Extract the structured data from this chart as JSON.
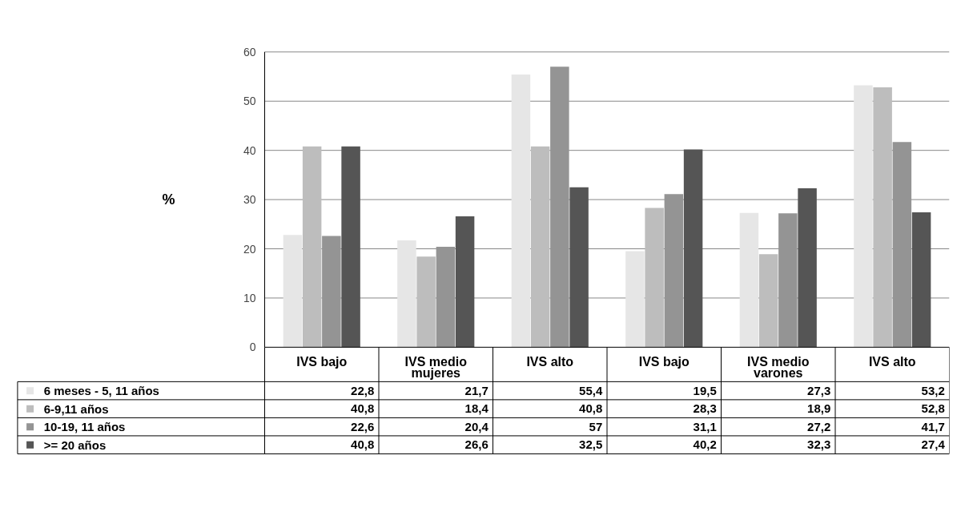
{
  "chart_data": {
    "type": "bar",
    "categories": [
      "IVS bajo",
      "IVS medio",
      "IVS alto",
      "IVS bajo",
      "IVS medio",
      "IVS alto"
    ],
    "annotations": [
      "%",
      "mujeres",
      "varones"
    ],
    "series": [
      {
        "name": "6 meses - 5, 11 años",
        "color": "#e6e6e6",
        "values": [
          22.8,
          21.7,
          55.4,
          19.5,
          27.3,
          53.2
        ],
        "value_labels": [
          "22,8",
          "21,7",
          "55,4",
          "19,5",
          "27,3",
          "53,2"
        ]
      },
      {
        "name": "6-9,11 años",
        "color": "#bdbdbd",
        "values": [
          40.8,
          18.4,
          40.8,
          28.3,
          18.9,
          52.8
        ],
        "value_labels": [
          "40,8",
          "18,4",
          "40,8",
          "28,3",
          "18,9",
          "52,8"
        ]
      },
      {
        "name": "10-19, 11 años",
        "color": "#949494",
        "values": [
          22.6,
          20.4,
          57,
          31.1,
          27.2,
          41.7
        ],
        "value_labels": [
          "22,6",
          "20,4",
          "57",
          "31,1",
          "27,2",
          "41,7"
        ]
      },
      {
        "name": ">= 20 años",
        "color": "#555555",
        "values": [
          40.8,
          26.6,
          32.5,
          40.2,
          32.3,
          27.4
        ],
        "value_labels": [
          "40,8",
          "26,6",
          "32,5",
          "40,2",
          "32,3",
          "27,4"
        ]
      }
    ],
    "ylim": [
      0,
      60
    ],
    "yticks": [
      0,
      10,
      20,
      30,
      40,
      50,
      60
    ],
    "grid": "y",
    "legend": "bottom"
  }
}
